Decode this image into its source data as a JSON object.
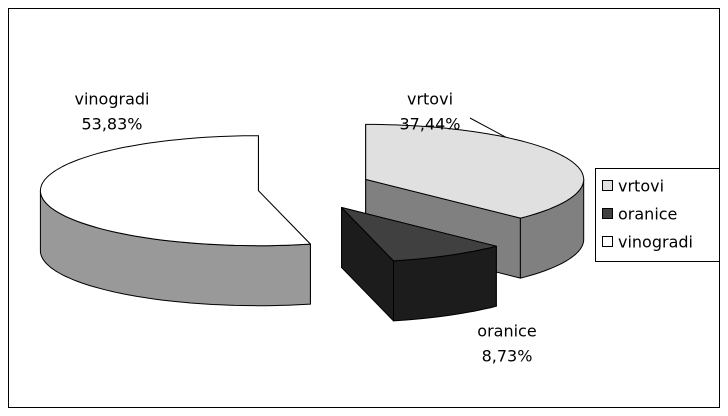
{
  "chart_data": {
    "type": "pie3d",
    "categories": [
      "vrtovi",
      "oranice",
      "vinogradi"
    ],
    "values": [
      37.44,
      8.73,
      53.83
    ],
    "value_labels": [
      "37,44%",
      "8,73%",
      "53,83%"
    ],
    "colors": [
      "#e0e0e0",
      "#404040",
      "#ffffff"
    ],
    "side_colors": [
      "#808080",
      "#1c1c1c",
      "#999999"
    ],
    "legend": "right"
  }
}
